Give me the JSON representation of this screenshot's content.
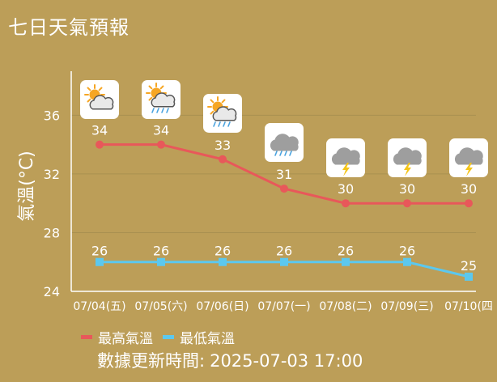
{
  "title": "七日天氣預報",
  "updated_label": "數據更新時間:",
  "updated_time": "2025-07-03 17:00",
  "colors": {
    "background": "#bc9e58",
    "high": "#e8585a",
    "low": "#5cc8ee"
  },
  "icons": [
    "sun-cloud-icon",
    "sun-cloud-rain-icon",
    "sun-cloud-rain-icon",
    "cloud-rain-icon",
    "cloud-thunder-icon",
    "cloud-thunder-icon",
    "cloud-thunder-icon"
  ],
  "chart_data": {
    "type": "line",
    "categories": [
      "07/04(五)",
      "07/05(六)",
      "07/06(日)",
      "07/07(一)",
      "07/08(二)",
      "07/09(三)",
      "07/10(四"
    ],
    "ylabel": "氣溫(°C)",
    "ylim": [
      24,
      39
    ],
    "yticks": [
      24,
      28,
      32,
      36
    ],
    "grid": true,
    "legend": "bottom-left",
    "series": [
      {
        "name": "最高氣溫",
        "values": [
          34,
          34,
          33,
          31,
          30,
          30,
          30
        ]
      },
      {
        "name": "最低氣溫",
        "values": [
          26,
          26,
          26,
          26,
          26,
          26,
          25
        ]
      }
    ]
  }
}
